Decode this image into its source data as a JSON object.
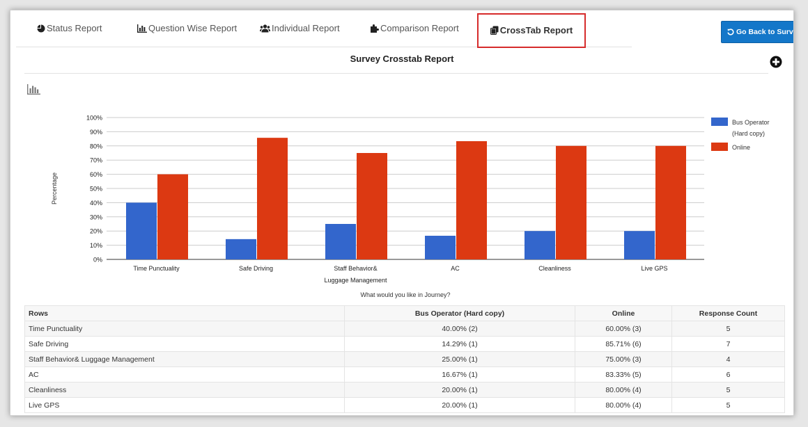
{
  "tabs": [
    {
      "label": "Status Report",
      "icon": "pie-chart-icon"
    },
    {
      "label": "Question Wise Report",
      "icon": "bar-chart-icon"
    },
    {
      "label": "Individual Report",
      "icon": "users-icon"
    },
    {
      "label": "Comparison Report",
      "icon": "puzzle-icon"
    },
    {
      "label": "CrossTab Report",
      "icon": "copy-icon",
      "active": true
    }
  ],
  "back_button": {
    "label": "Go Back to Survey",
    "icon": "undo-icon"
  },
  "report_title": "Survey Crosstab Report",
  "colors": {
    "accent": "#1477c9",
    "series1": "#3366cc",
    "series2": "#dc3912",
    "active_tab_border": "#d62b2b"
  },
  "chart_data": {
    "type": "bar",
    "xlabel": "What would you like in Journey?",
    "ylabel": "Percentage",
    "ylim": [
      0,
      100
    ],
    "yticks": [
      "0%",
      "10%",
      "20%",
      "30%",
      "40%",
      "50%",
      "60%",
      "70%",
      "80%",
      "90%",
      "100%"
    ],
    "categories": [
      [
        "Time Punctuality"
      ],
      [
        "Safe Driving"
      ],
      [
        "Staff Behavior&",
        "Luggage Management"
      ],
      [
        "AC"
      ],
      [
        "Cleanliness"
      ],
      [
        "Live GPS"
      ]
    ],
    "series": [
      {
        "name": [
          "Bus Operator",
          "(Hard copy)"
        ],
        "color": "#3366cc",
        "values": [
          40.0,
          14.29,
          25.0,
          16.67,
          20.0,
          20.0
        ]
      },
      {
        "name": [
          "Online"
        ],
        "color": "#dc3912",
        "values": [
          60.0,
          85.71,
          75.0,
          83.33,
          80.0,
          80.0
        ]
      }
    ],
    "grid": true,
    "legend": "right"
  },
  "table": {
    "headers": [
      "Rows",
      "Bus Operator (Hard copy)",
      "Online",
      "Response Count"
    ],
    "rows": [
      [
        "Time Punctuality",
        "40.00% (2)",
        "60.00% (3)",
        "5"
      ],
      [
        "Safe Driving",
        "14.29% (1)",
        "85.71% (6)",
        "7"
      ],
      [
        "Staff Behavior& Luggage Management",
        "25.00% (1)",
        "75.00% (3)",
        "4"
      ],
      [
        "AC",
        "16.67% (1)",
        "83.33% (5)",
        "6"
      ],
      [
        "Cleanliness",
        "20.00% (1)",
        "80.00% (4)",
        "5"
      ],
      [
        "Live GPS",
        "20.00% (1)",
        "80.00% (4)",
        "5"
      ]
    ]
  }
}
